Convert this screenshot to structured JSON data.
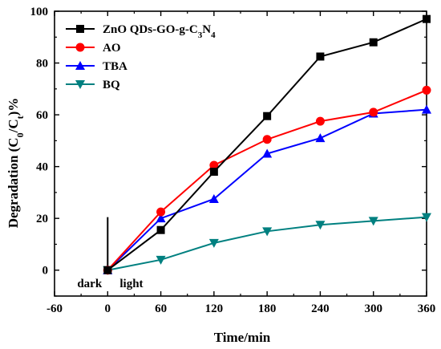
{
  "chart_data": {
    "type": "line",
    "xlabel": "Time/min",
    "ylabel": "Degradation (C0/Ct)%",
    "xlim": [
      -60,
      360
    ],
    "ylim": [
      -10,
      100
    ],
    "xticks": [
      -60,
      0,
      60,
      120,
      180,
      240,
      300,
      360
    ],
    "yticks": [
      0,
      20,
      40,
      60,
      80,
      100
    ],
    "x": [
      0,
      60,
      120,
      180,
      240,
      300,
      360
    ],
    "legend_position": "top-left",
    "grid": false,
    "series": [
      {
        "name": "ZnO QDs-GO-g-C3N4",
        "color": "#000000",
        "marker": "square",
        "values": [
          0,
          15.5,
          38,
          59.5,
          82.5,
          88,
          97
        ]
      },
      {
        "name": "AO",
        "color": "#ff0000",
        "marker": "circle",
        "values": [
          0,
          22.5,
          40.5,
          50.5,
          57.5,
          61,
          69.5
        ]
      },
      {
        "name": "TBA",
        "color": "#0000ff",
        "marker": "triangle-up",
        "values": [
          0,
          20,
          27.5,
          45,
          51,
          60.5,
          62
        ]
      },
      {
        "name": "BQ",
        "color": "#008080",
        "marker": "triangle-down",
        "values": [
          0,
          4,
          10.5,
          15,
          17.5,
          19,
          20.5
        ]
      }
    ],
    "annotations": [
      {
        "text": "dark",
        "x": -20,
        "y": -5
      },
      {
        "text": "light",
        "x": 20,
        "y": -5
      }
    ],
    "divider_line": {
      "x": 0,
      "y_from": 0,
      "y_to": 20.5
    }
  }
}
